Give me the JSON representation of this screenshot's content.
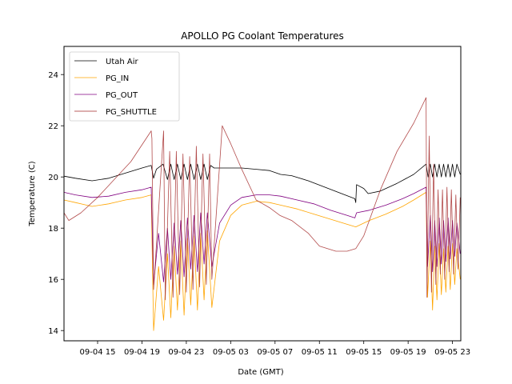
{
  "chart_data": {
    "type": "line",
    "title": "APOLLO PG Coolant Temperatures",
    "xlabel": "Date (GMT)",
    "ylabel": "Temperature (C)",
    "x_unit": "hours since 09-04 00:00",
    "xlim": [
      11.97,
      47.75
    ],
    "ylim": [
      13.6,
      25.1
    ],
    "grid": false,
    "legend_position": "top-left",
    "x_ticks": [
      {
        "value": 15,
        "label": "09-04 15"
      },
      {
        "value": 19,
        "label": "09-04 19"
      },
      {
        "value": 23,
        "label": "09-04 23"
      },
      {
        "value": 27,
        "label": "09-05 03"
      },
      {
        "value": 31,
        "label": "09-05 07"
      },
      {
        "value": 35,
        "label": "09-05 11"
      },
      {
        "value": 39,
        "label": "09-05 15"
      },
      {
        "value": 43,
        "label": "09-05 19"
      },
      {
        "value": 47,
        "label": "09-05 23"
      }
    ],
    "y_ticks": [
      {
        "value": 14,
        "label": "14"
      },
      {
        "value": 16,
        "label": "16"
      },
      {
        "value": 18,
        "label": "18"
      },
      {
        "value": 20,
        "label": "20"
      },
      {
        "value": 22,
        "label": "22"
      },
      {
        "value": 24,
        "label": "24"
      }
    ],
    "series": [
      {
        "name": "Utah Air",
        "color": "#000000",
        "x": [
          11.97,
          13.0,
          14.5,
          16.0,
          17.5,
          19.0,
          19.83,
          20.05,
          20.3,
          20.9,
          21.3,
          21.6,
          21.9,
          22.2,
          22.5,
          22.8,
          23.1,
          23.4,
          23.7,
          24.0,
          24.3,
          24.6,
          24.9,
          25.2,
          25.5,
          26.5,
          28.0,
          29.3,
          30.5,
          31.5,
          32.5,
          34.0,
          35.5,
          37.0,
          38.2,
          38.28,
          38.35,
          39.0,
          39.4,
          40.5,
          42.0,
          43.5,
          44.62,
          44.8,
          45.0,
          45.2,
          45.4,
          45.6,
          45.8,
          46.0,
          46.2,
          46.4,
          46.6,
          46.8,
          47.0,
          47.2,
          47.4,
          47.7
        ],
        "y": [
          20.03,
          19.95,
          19.85,
          19.95,
          20.15,
          20.35,
          20.45,
          19.95,
          20.3,
          20.5,
          19.9,
          20.5,
          19.9,
          20.5,
          19.9,
          20.5,
          19.9,
          20.5,
          19.9,
          20.5,
          19.9,
          20.5,
          19.9,
          20.45,
          20.35,
          20.35,
          20.35,
          20.3,
          20.25,
          20.1,
          20.05,
          19.85,
          19.6,
          19.35,
          19.15,
          19.0,
          19.7,
          19.55,
          19.35,
          19.45,
          19.75,
          20.1,
          20.5,
          20.0,
          20.5,
          20.0,
          20.5,
          20.0,
          20.5,
          20.0,
          20.5,
          20.0,
          20.5,
          20.0,
          20.5,
          20.0,
          20.5,
          20.1
        ]
      },
      {
        "name": "PG_IN",
        "color": "#ffa500",
        "x": [
          11.97,
          13.0,
          14.5,
          16.0,
          17.5,
          19.0,
          19.83,
          20.05,
          20.5,
          20.95,
          21.3,
          21.6,
          21.9,
          22.2,
          22.5,
          22.8,
          23.1,
          23.4,
          23.7,
          24.0,
          24.3,
          24.6,
          24.9,
          25.3,
          26.0,
          27.0,
          28.0,
          29.3,
          30.5,
          31.5,
          33.0,
          34.5,
          36.0,
          37.5,
          38.28,
          39.5,
          41.0,
          42.5,
          43.5,
          44.62,
          44.75,
          45.0,
          45.2,
          45.4,
          45.6,
          45.8,
          46.0,
          46.2,
          46.4,
          46.6,
          46.8,
          47.0,
          47.2,
          47.4,
          47.7
        ],
        "y": [
          19.1,
          19.0,
          18.85,
          18.95,
          19.1,
          19.2,
          19.3,
          14.0,
          16.5,
          14.4,
          17.0,
          14.5,
          17.3,
          14.8,
          17.5,
          14.6,
          17.6,
          15.0,
          17.7,
          14.8,
          17.8,
          15.2,
          17.9,
          14.9,
          17.5,
          18.5,
          18.9,
          19.05,
          19.0,
          18.9,
          18.75,
          18.55,
          18.35,
          18.15,
          18.05,
          18.3,
          18.55,
          18.85,
          19.1,
          19.4,
          15.3,
          17.5,
          14.8,
          17.3,
          15.2,
          17.4,
          15.4,
          17.2,
          15.5,
          17.3,
          15.6,
          17.4,
          15.8,
          17.2,
          16.0
        ]
      },
      {
        "name": "PG_OUT",
        "color": "#800080",
        "x": [
          11.97,
          13.0,
          14.5,
          16.0,
          17.5,
          19.0,
          19.83,
          20.05,
          20.5,
          20.95,
          21.3,
          21.6,
          21.9,
          22.2,
          22.5,
          22.8,
          23.1,
          23.4,
          23.7,
          24.0,
          24.3,
          24.6,
          24.9,
          25.3,
          26.0,
          27.0,
          28.0,
          29.3,
          30.5,
          31.5,
          33.0,
          34.5,
          36.0,
          37.5,
          38.2,
          38.35,
          39.5,
          41.0,
          42.5,
          43.5,
          44.62,
          44.75,
          45.0,
          45.2,
          45.4,
          45.6,
          45.8,
          46.0,
          46.2,
          46.4,
          46.6,
          46.8,
          47.0,
          47.2,
          47.4,
          47.7
        ],
        "y": [
          19.4,
          19.3,
          19.2,
          19.25,
          19.4,
          19.5,
          19.6,
          15.8,
          17.8,
          15.9,
          18.0,
          16.0,
          18.2,
          16.2,
          18.3,
          16.1,
          18.4,
          16.4,
          18.5,
          16.3,
          18.6,
          16.6,
          18.6,
          16.5,
          18.2,
          18.9,
          19.2,
          19.3,
          19.3,
          19.25,
          19.1,
          18.95,
          18.7,
          18.5,
          18.4,
          18.6,
          18.7,
          18.9,
          19.15,
          19.35,
          19.6,
          16.5,
          18.5,
          16.3,
          18.3,
          16.5,
          18.4,
          16.6,
          18.3,
          16.7,
          18.4,
          16.8,
          18.3,
          16.9,
          18.2,
          17.0
        ]
      },
      {
        "name": "PG_SHUTTLE",
        "color": "#a52a2a",
        "x": [
          11.97,
          12.4,
          13.5,
          15.0,
          16.5,
          18.0,
          19.83,
          19.9,
          20.05,
          20.95,
          21.1,
          21.5,
          21.8,
          22.1,
          22.4,
          22.7,
          23.0,
          23.3,
          23.6,
          23.9,
          24.2,
          24.5,
          24.8,
          25.1,
          25.3,
          26.24,
          27.0,
          28.0,
          29.3,
          30.5,
          31.43,
          32.5,
          34.0,
          35.0,
          36.48,
          37.5,
          38.28,
          39.0,
          40.5,
          42.0,
          43.5,
          44.62,
          44.7,
          44.9,
          45.1,
          45.3,
          45.5,
          45.7,
          45.9,
          46.1,
          46.3,
          46.5,
          46.7,
          46.9,
          47.1,
          47.3,
          47.5,
          47.7
        ],
        "y": [
          18.6,
          18.3,
          18.6,
          19.2,
          19.9,
          20.6,
          21.8,
          21.5,
          15.6,
          21.8,
          15.2,
          21.0,
          15.3,
          21.0,
          15.4,
          20.9,
          15.5,
          20.8,
          15.6,
          21.2,
          15.7,
          20.9,
          15.8,
          20.9,
          16.0,
          22.0,
          21.3,
          20.3,
          19.1,
          18.8,
          18.5,
          18.3,
          17.8,
          17.3,
          17.1,
          17.1,
          17.2,
          17.7,
          19.5,
          21.0,
          22.1,
          23.1,
          15.3,
          21.6,
          15.5,
          20.5,
          15.8,
          19.5,
          16.2,
          19.5,
          16.0,
          19.6,
          16.3,
          19.5,
          16.2,
          19.3,
          16.4,
          19.2
        ]
      }
    ]
  }
}
